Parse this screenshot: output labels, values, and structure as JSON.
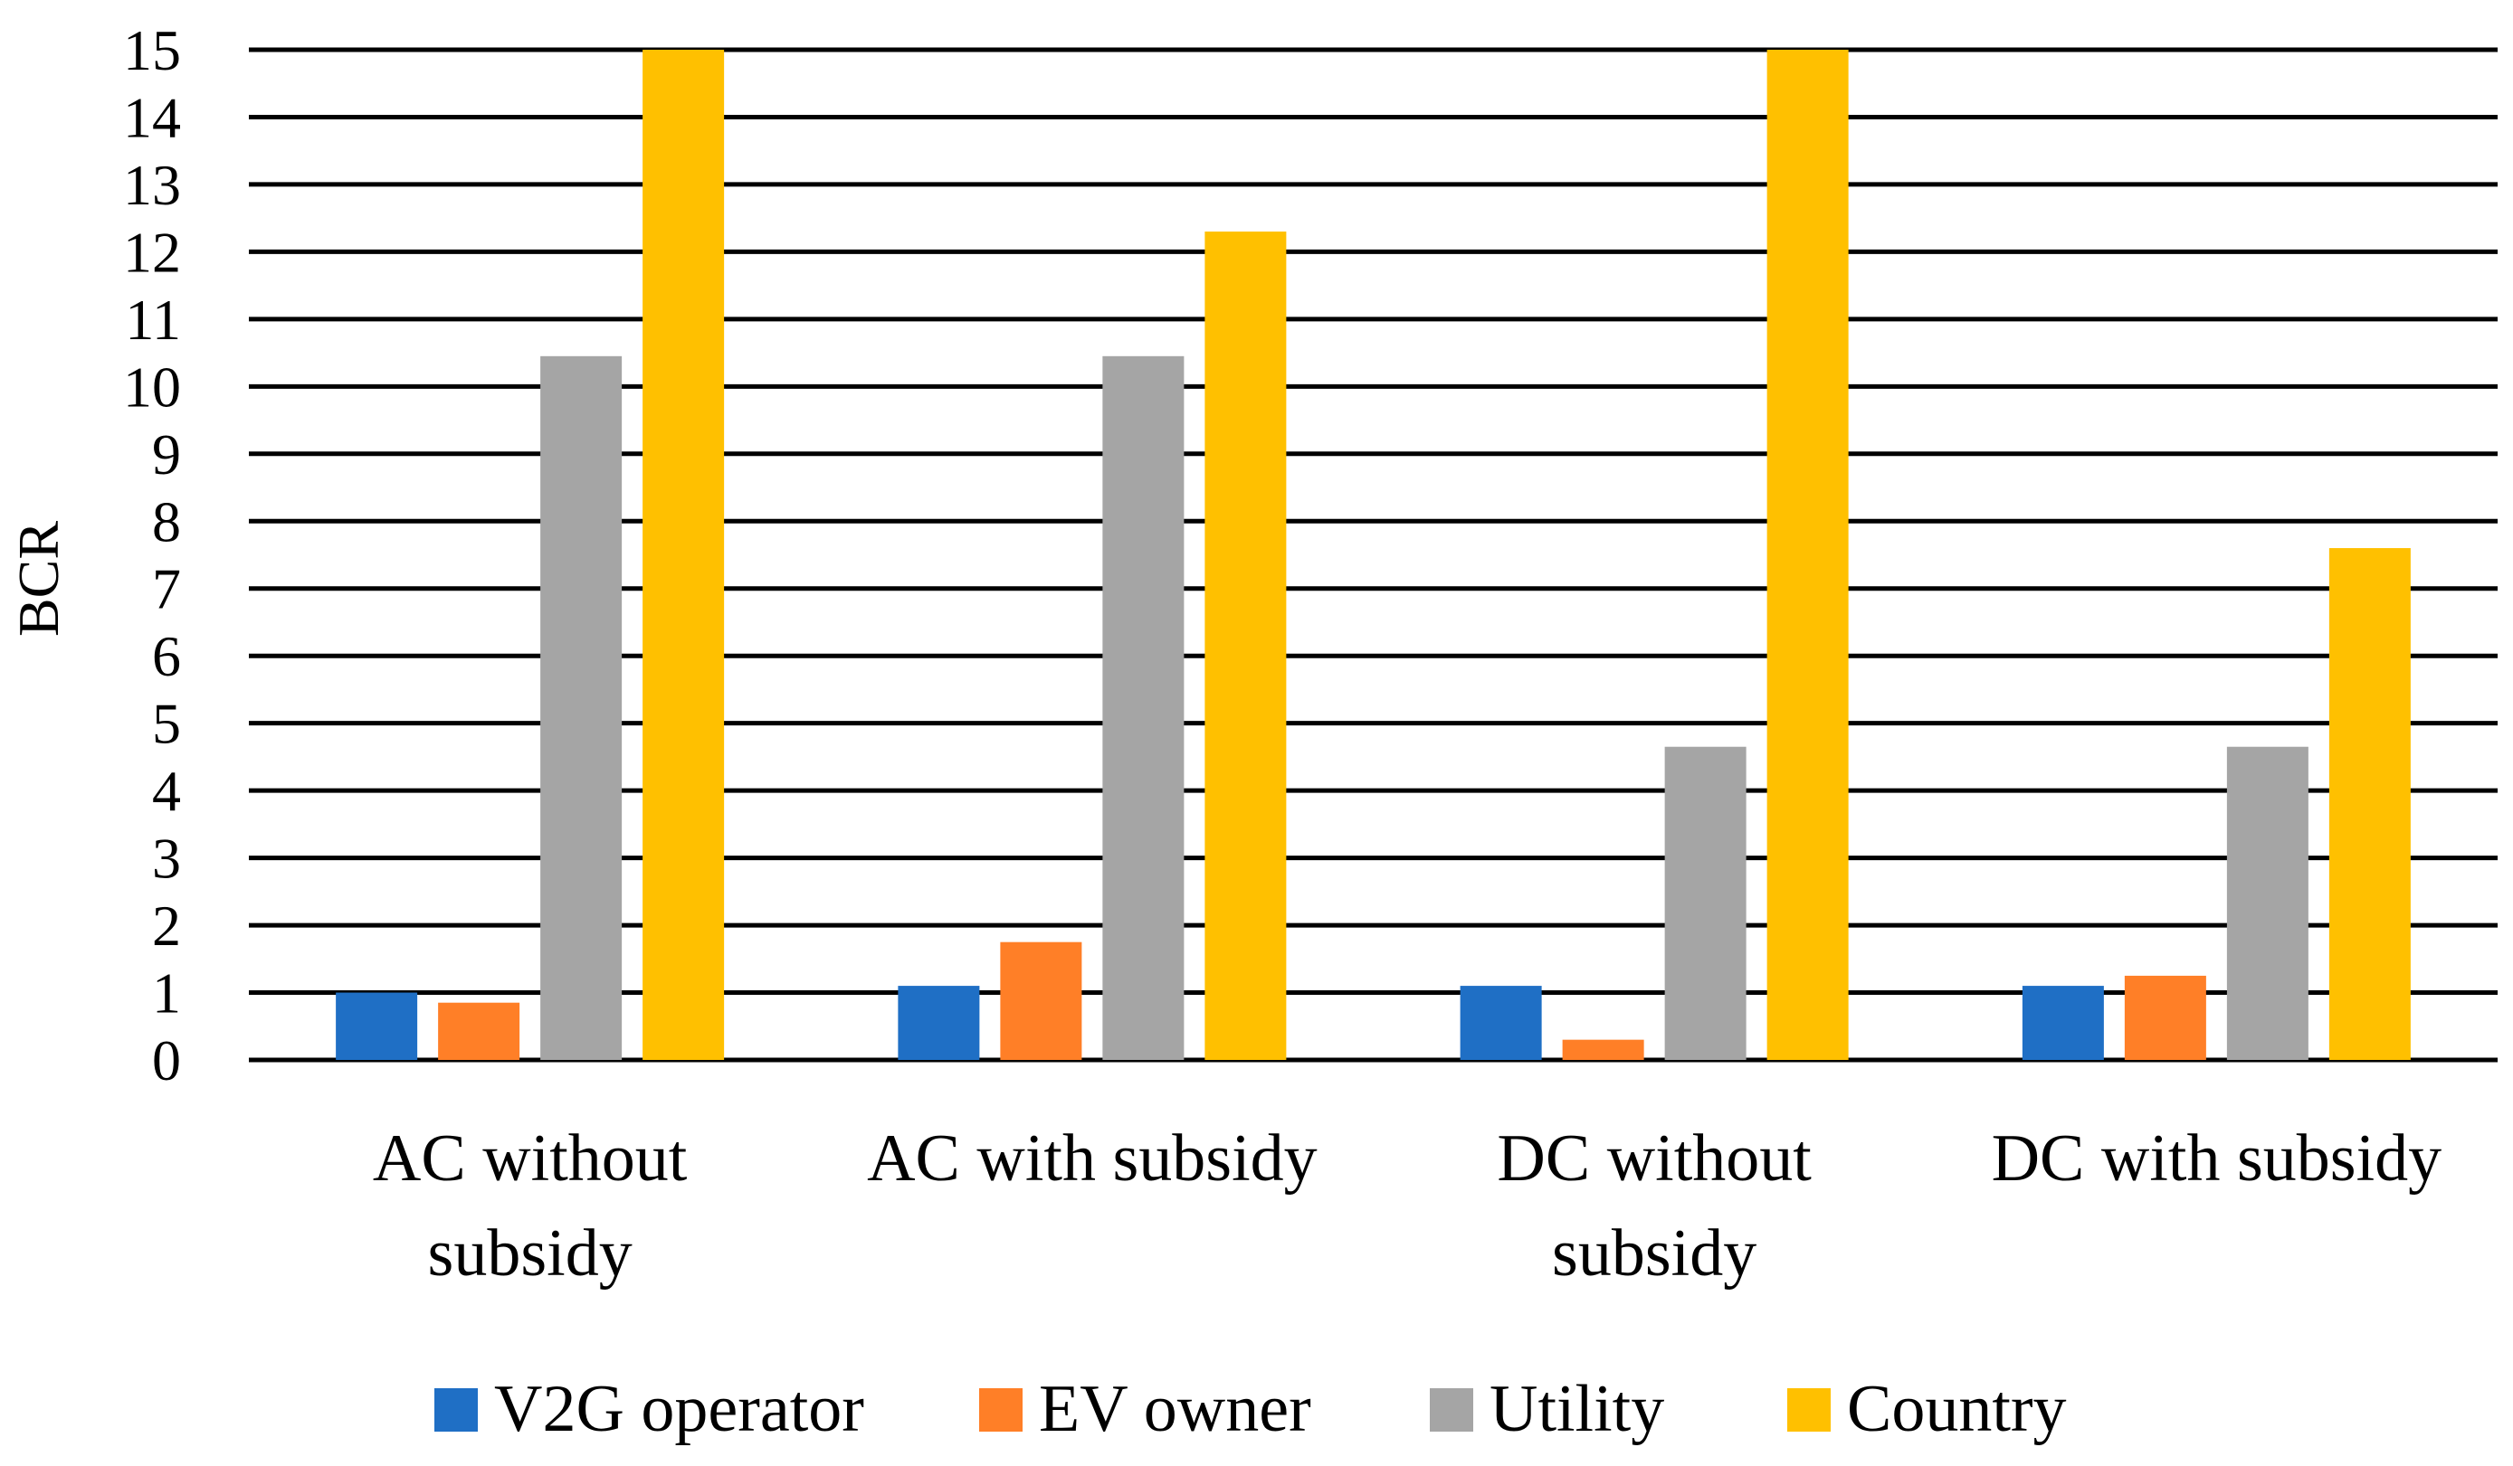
{
  "chart_data": {
    "type": "bar",
    "title": "",
    "xlabel": "",
    "ylabel": "BCR",
    "ylim": [
      0,
      15
    ],
    "yticks": [
      0,
      1,
      2,
      3,
      4,
      5,
      6,
      7,
      8,
      9,
      10,
      11,
      12,
      13,
      14,
      15
    ],
    "grid": true,
    "legend_position": "bottom",
    "categories": [
      [
        "AC without",
        "subsidy"
      ],
      [
        "AC with subsidy"
      ],
      [
        "DC without",
        "subsidy"
      ],
      [
        "DC with subsidy"
      ]
    ],
    "series": [
      {
        "name": "V2G operator",
        "color": "#1F6FC5",
        "values": [
          1.0,
          1.1,
          1.1,
          1.1
        ]
      },
      {
        "name": "EV owner",
        "color": "#FF7F27",
        "values": [
          0.85,
          1.75,
          0.3,
          1.25
        ]
      },
      {
        "name": "Utility",
        "color": "#A5A5A5",
        "values": [
          10.45,
          10.45,
          4.65,
          4.65
        ]
      },
      {
        "name": "Country",
        "color": "#FFC000",
        "values": [
          15.0,
          12.3,
          15.0,
          7.6
        ]
      }
    ]
  }
}
